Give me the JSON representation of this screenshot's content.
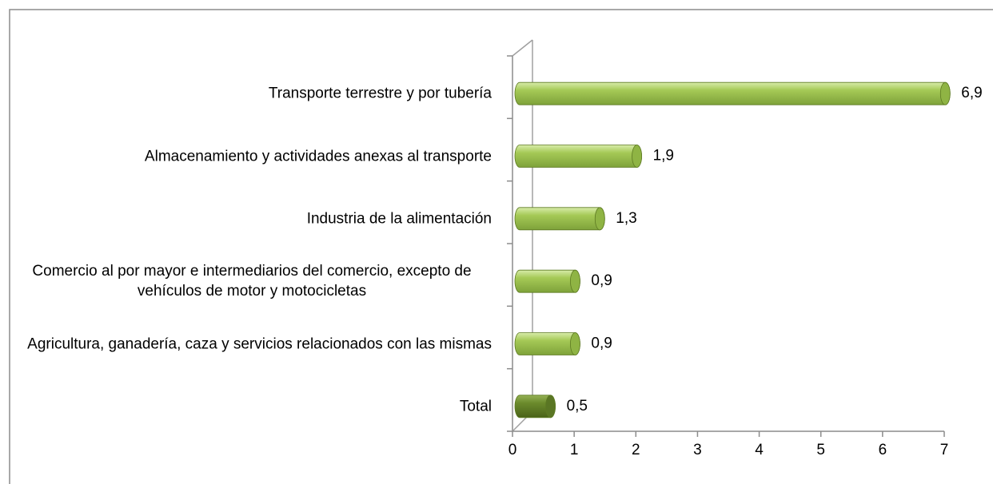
{
  "chart_data": {
    "type": "bar",
    "orientation": "horizontal",
    "categories": [
      "Transporte terrestre y por tubería",
      "Almacenamiento y actividades anexas al transporte",
      "Industria de la alimentación",
      "Comercio al por mayor e intermediarios del comercio, excepto de vehículos de motor y motocicletas",
      "Agricultura, ganadería, caza y servicios relacionados con las mismas",
      "Total"
    ],
    "values": [
      6.9,
      1.9,
      1.3,
      0.9,
      0.9,
      0.5
    ],
    "value_labels": [
      "6,9",
      "1,9",
      "1,3",
      "0,9",
      "0,9",
      "0,5"
    ],
    "colors": [
      "#a5c956",
      "#a5c956",
      "#a5c956",
      "#a5c956",
      "#a5c956",
      "#6b8a2c"
    ],
    "xlim": [
      0,
      7
    ],
    "xticks": [
      0,
      1,
      2,
      3,
      4,
      5,
      6,
      7
    ]
  }
}
